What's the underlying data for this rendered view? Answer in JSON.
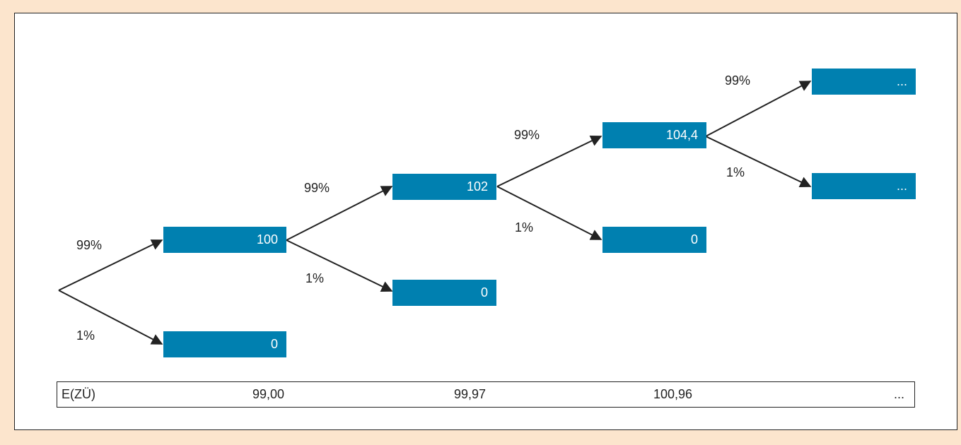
{
  "probabilities": {
    "p_up": "99%",
    "p_down": "1%"
  },
  "nodes": {
    "n1_up": "100",
    "n1_down": "0",
    "n2_up": "102",
    "n2_down": "0",
    "n3_up": "104,4",
    "n3_down": "0",
    "n4_up": "...",
    "n4_down": "..."
  },
  "expected_values": {
    "label": "E(ZÜ)",
    "v1": "99,00",
    "v2": "99,97",
    "v3": "100,96",
    "v4": "..."
  },
  "colors": {
    "node_fill": "#0080B0",
    "node_text": "#ffffff",
    "background": "#FCE5CD"
  }
}
